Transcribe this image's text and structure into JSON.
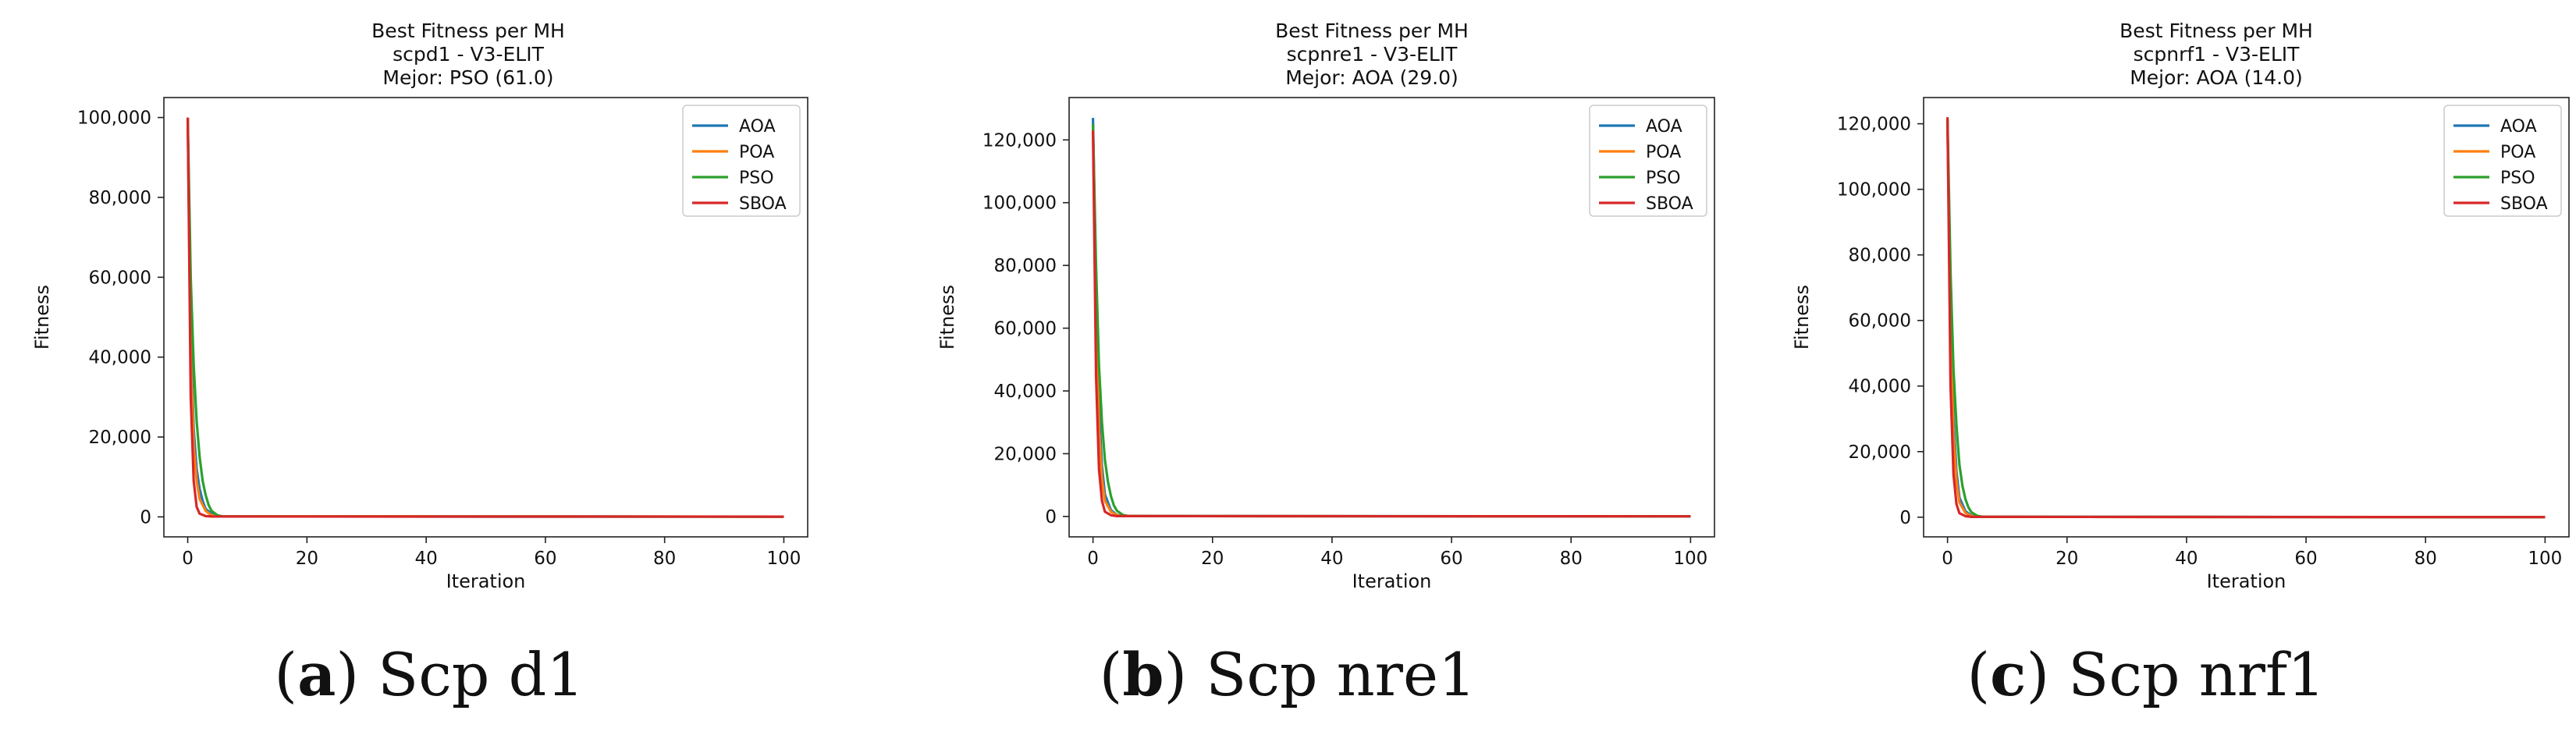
{
  "chart_data": [
    {
      "type": "line",
      "title": [
        "Best Fitness per MH",
        "scpd1 - V3-ELIT",
        "Mejor: PSO (61.0)"
      ],
      "xlabel": "Iteration",
      "ylabel": "Fitness",
      "xlim": [
        -4,
        104
      ],
      "ylim": [
        -5000,
        105000
      ],
      "xticks": [
        0,
        20,
        40,
        60,
        80,
        100
      ],
      "yticks": [
        0,
        20000,
        40000,
        60000,
        80000,
        100000
      ],
      "ytick_labels": [
        "0",
        "20,000",
        "40,000",
        "60,000",
        "80,000",
        "100,000"
      ],
      "legend_position": "upper-right",
      "caption": {
        "letter": "a",
        "text": "Scp d1"
      },
      "series": [
        {
          "name": "AOA",
          "color": "#1f77b4",
          "x": [
            0,
            0.5,
            1,
            1.5,
            2,
            2.5,
            3,
            4,
            5,
            6,
            100
          ],
          "y": [
            99500,
            45000,
            22000,
            12000,
            7000,
            4000,
            2000,
            800,
            300,
            100,
            64
          ]
        },
        {
          "name": "POA",
          "color": "#ff7f0e",
          "x": [
            0,
            0.5,
            1,
            1.5,
            2,
            3,
            4,
            5,
            100
          ],
          "y": [
            99000,
            40000,
            18000,
            9000,
            4500,
            1500,
            400,
            150,
            62
          ]
        },
        {
          "name": "PSO",
          "color": "#2ca02c",
          "x": [
            0,
            0.5,
            1,
            1.5,
            2,
            2.5,
            3,
            3.5,
            4,
            5,
            6,
            100
          ],
          "y": [
            99800,
            60000,
            38000,
            24000,
            15000,
            9000,
            5500,
            3000,
            1500,
            400,
            100,
            61
          ]
        },
        {
          "name": "SBOA",
          "color": "#d62728",
          "x": [
            0,
            0.5,
            1,
            1.5,
            2,
            3,
            4,
            100
          ],
          "y": [
            100000,
            30000,
            9000,
            2500,
            800,
            200,
            100,
            70
          ]
        }
      ]
    },
    {
      "type": "line",
      "title": [
        "Best Fitness per MH",
        "scpnre1 - V3-ELIT",
        "Mejor: AOA (29.0)"
      ],
      "xlabel": "Iteration",
      "ylabel": "Fitness",
      "xlim": [
        -4,
        104
      ],
      "ylim": [
        -6500,
        133500
      ],
      "xticks": [
        0,
        20,
        40,
        60,
        80,
        100
      ],
      "yticks": [
        0,
        20000,
        40000,
        60000,
        80000,
        100000,
        120000
      ],
      "ytick_labels": [
        "0",
        "20,000",
        "40,000",
        "60,000",
        "80,000",
        "100,000",
        "120,000"
      ],
      "legend_position": "upper-right",
      "caption": {
        "letter": "b",
        "text": "Scp nre1"
      },
      "series": [
        {
          "name": "AOA",
          "color": "#1f77b4",
          "x": [
            0,
            0.5,
            1,
            1.5,
            2,
            3,
            4,
            5,
            100
          ],
          "y": [
            127000,
            70000,
            35000,
            16000,
            7000,
            2000,
            500,
            150,
            29
          ]
        },
        {
          "name": "POA",
          "color": "#ff7f0e",
          "x": [
            0,
            0.5,
            1,
            1.5,
            2,
            3,
            4,
            5,
            100
          ],
          "y": [
            124000,
            60000,
            28000,
            12000,
            5000,
            1500,
            400,
            120,
            35
          ]
        },
        {
          "name": "PSO",
          "color": "#2ca02c",
          "x": [
            0,
            0.5,
            1,
            1.5,
            2,
            2.5,
            3,
            3.5,
            4,
            5,
            6,
            100
          ],
          "y": [
            125000,
            80000,
            48000,
            30000,
            18000,
            11000,
            6500,
            3500,
            1800,
            500,
            120,
            40
          ]
        },
        {
          "name": "SBOA",
          "color": "#d62728",
          "x": [
            0,
            0.5,
            1,
            1.5,
            2,
            3,
            4,
            100
          ],
          "y": [
            123000,
            45000,
            15000,
            5000,
            1500,
            400,
            120,
            45
          ]
        }
      ]
    },
    {
      "type": "line",
      "title": [
        "Best Fitness per MH",
        "scpnrf1 - V3-ELIT",
        "Mejor: AOA (14.0)"
      ],
      "xlabel": "Iteration",
      "ylabel": "Fitness",
      "xlim": [
        -4,
        104
      ],
      "ylim": [
        -6000,
        128000
      ],
      "xticks": [
        0,
        20,
        40,
        60,
        80,
        100
      ],
      "yticks": [
        0,
        20000,
        40000,
        60000,
        80000,
        100000,
        120000
      ],
      "ytick_labels": [
        "0",
        "20,000",
        "40,000",
        "60,000",
        "80,000",
        "100,000",
        "120,000"
      ],
      "legend_position": "upper-right",
      "caption": {
        "letter": "c",
        "text": "Scp nrf1"
      },
      "series": [
        {
          "name": "AOA",
          "color": "#1f77b4",
          "x": [
            0,
            0.5,
            1,
            1.5,
            2,
            3,
            4,
            5,
            100
          ],
          "y": [
            121000,
            60000,
            30000,
            14000,
            6000,
            1800,
            500,
            150,
            14
          ]
        },
        {
          "name": "POA",
          "color": "#ff7f0e",
          "x": [
            0,
            0.5,
            1,
            1.5,
            2,
            3,
            4,
            5,
            100
          ],
          "y": [
            120000,
            55000,
            25000,
            11000,
            4500,
            1300,
            350,
            100,
            20
          ]
        },
        {
          "name": "PSO",
          "color": "#2ca02c",
          "x": [
            0,
            0.5,
            1,
            1.5,
            2,
            2.5,
            3,
            3.5,
            4,
            5,
            6,
            100
          ],
          "y": [
            121500,
            75000,
            45000,
            28000,
            16000,
            9500,
            5500,
            3000,
            1500,
            400,
            100,
            25
          ]
        },
        {
          "name": "SBOA",
          "color": "#d62728",
          "x": [
            0,
            0.5,
            1,
            1.5,
            2,
            3,
            4,
            100
          ],
          "y": [
            122000,
            40000,
            13000,
            4000,
            1200,
            300,
            100,
            30
          ]
        }
      ]
    }
  ]
}
